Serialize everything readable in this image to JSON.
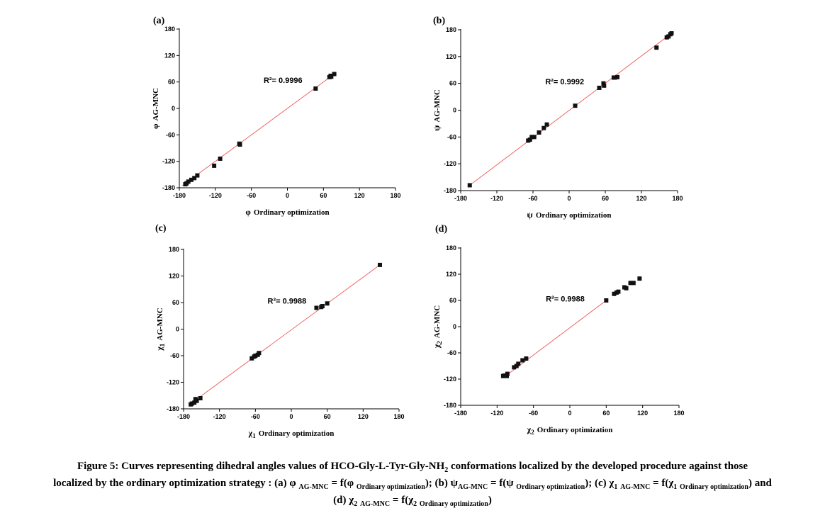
{
  "caption": {
    "line1": "Figure 5: Curves representing dihedral angles values of HCO-Gly-L-Tyr-Gly-NH",
    "line1_sub": "2",
    "line1_end": " conformations localized by the developed procedure against those",
    "line2_start": "localized by the ordinary optimization strategy : (a) φ ",
    "sub_ag": "AG-MNC",
    "eq_f": " = f(φ ",
    "sub_ord": "Ordinary optimization",
    "part_b": "); (b) ψ",
    "eq_f_psi": " = f(ψ ",
    "part_c": "); (c) χ",
    "sub_1": "1",
    "eq_f_chi1": " = f(χ",
    "part_end_c": ") and",
    "line3_start": "(d) χ",
    "sub_2": "2",
    "eq_f_chi2": " = f(χ",
    "line3_end": ")"
  },
  "chart_data": [
    {
      "type": "scatter",
      "panel": "(a)",
      "x_sym": "φ",
      "x_text": "Ordinary optimization",
      "y_sym": "φ",
      "y_text": "AG-MNC",
      "r2": "R²= 0.9996",
      "xlim": [
        -180,
        180
      ],
      "ylim": [
        -180,
        180
      ],
      "ticks": [
        "-180",
        "-120",
        "-60",
        "0",
        "60",
        "120",
        "180"
      ],
      "fit": [
        [
          -175,
          -175
        ],
        [
          78,
          78
        ]
      ],
      "points": [
        [
          -170,
          -172
        ],
        [
          -168,
          -170
        ],
        [
          -165,
          -166
        ],
        [
          -160,
          -162
        ],
        [
          -155,
          -158
        ],
        [
          -150,
          -152
        ],
        [
          -122,
          -130
        ],
        [
          -112,
          -114
        ],
        [
          -80,
          -80
        ],
        [
          -79,
          -82
        ],
        [
          47,
          45
        ],
        [
          70,
          71
        ],
        [
          72,
          74
        ],
        [
          73,
          72
        ],
        [
          78,
          78
        ]
      ]
    },
    {
      "type": "scatter",
      "panel": "(b)",
      "x_sym": "ψ",
      "x_text": "Ordinary optimization",
      "y_sym": "ψ",
      "y_text": "AG-MNC",
      "r2": "R²= 0.9992",
      "xlim": [
        -180,
        180
      ],
      "ylim": [
        -180,
        180
      ],
      "ticks": [
        "-180",
        "-120",
        "-60",
        "0",
        "60",
        "120",
        "180"
      ],
      "fit": [
        [
          -165,
          -168
        ],
        [
          170,
          172
        ]
      ],
      "points": [
        [
          -165,
          -168
        ],
        [
          -68,
          -68
        ],
        [
          -65,
          -66
        ],
        [
          -62,
          -60
        ],
        [
          -58,
          -60
        ],
        [
          -50,
          -50
        ],
        [
          -42,
          -40
        ],
        [
          -37,
          -32
        ],
        [
          10,
          10
        ],
        [
          50,
          50
        ],
        [
          57,
          60
        ],
        [
          58,
          55
        ],
        [
          74,
          73
        ],
        [
          76,
          73
        ],
        [
          80,
          74
        ],
        [
          145,
          140
        ],
        [
          162,
          163
        ],
        [
          165,
          165
        ],
        [
          168,
          170
        ],
        [
          170,
          172
        ]
      ]
    },
    {
      "type": "scatter",
      "panel": "(c)",
      "x_sym": "χ",
      "x_sub": "1",
      "x_text": "Ordinary optimization",
      "y_sym": "χ",
      "y_sub": "1",
      "y_text": "AG-MNC",
      "r2": "R²= 0.9988",
      "xlim": [
        -180,
        180
      ],
      "ylim": [
        -180,
        180
      ],
      "ticks": [
        "-180",
        "-120",
        "-60",
        "0",
        "60",
        "120",
        "180"
      ],
      "fit": [
        [
          -170,
          -170
        ],
        [
          148,
          145
        ]
      ],
      "points": [
        [
          -168,
          -170
        ],
        [
          -166,
          -168
        ],
        [
          -162,
          -166
        ],
        [
          -160,
          -158
        ],
        [
          -160,
          -160
        ],
        [
          -158,
          -162
        ],
        [
          -152,
          -156
        ],
        [
          -66,
          -66
        ],
        [
          -62,
          -62
        ],
        [
          -60,
          -60
        ],
        [
          -56,
          -58
        ],
        [
          -54,
          -54
        ],
        [
          42,
          48
        ],
        [
          50,
          50
        ],
        [
          52,
          52
        ],
        [
          60,
          58
        ],
        [
          148,
          145
        ]
      ]
    },
    {
      "type": "scatter",
      "panel": "(d)",
      "x_sym": "χ",
      "x_sub": "2",
      "x_text": "Ordinary optimization",
      "y_sym": "χ",
      "y_sub": "2",
      "y_text": "AG-MNC",
      "r2": "R²= 0.9988",
      "xlim": [
        -180,
        180
      ],
      "ylim": [
        -180,
        180
      ],
      "ticks": [
        "-180",
        "-120",
        "-60",
        "0",
        "60",
        "120",
        "180"
      ],
      "fit": [
        [
          -108,
          -115
        ],
        [
          60,
          60
        ]
      ],
      "points": [
        [
          -110,
          -113
        ],
        [
          -108,
          -112
        ],
        [
          -104,
          -113
        ],
        [
          -103,
          -108
        ],
        [
          -92,
          -93
        ],
        [
          -88,
          -90
        ],
        [
          -85,
          -85
        ],
        [
          -78,
          -77
        ],
        [
          -72,
          -73
        ],
        [
          60,
          60
        ],
        [
          73,
          75
        ],
        [
          77,
          78
        ],
        [
          80,
          80
        ],
        [
          90,
          90
        ],
        [
          93,
          88
        ],
        [
          100,
          100
        ],
        [
          105,
          100
        ],
        [
          115,
          110
        ]
      ]
    }
  ]
}
